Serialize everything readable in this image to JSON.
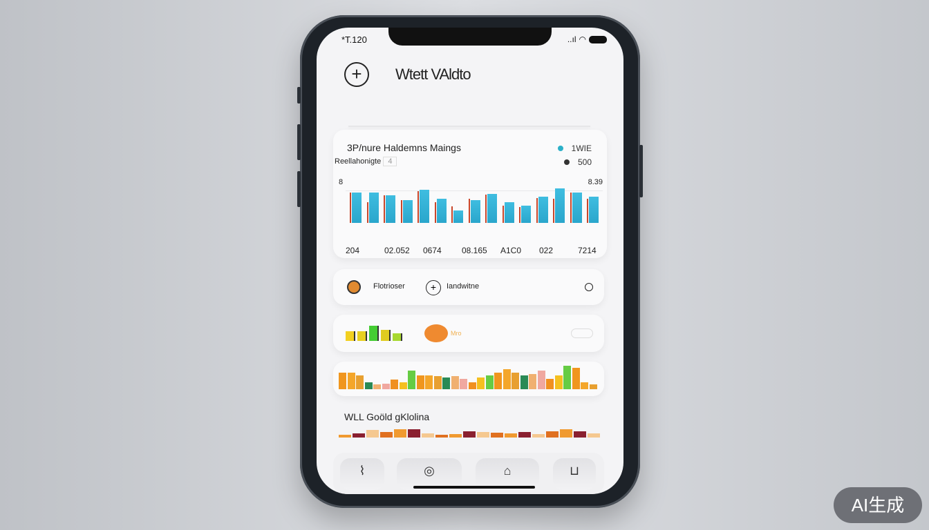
{
  "status": {
    "time": "*T‌.120",
    "signal": "..ıl",
    "wifi": "wifi-icon",
    "battery": "battery-icon"
  },
  "header": {
    "title": "Wtett VAldto",
    "add_icon": "plus-circle-icon"
  },
  "chart_card": {
    "title": "3P/nure  Haldemns Maings",
    "subtitle": "Reellahonigte",
    "subtitle_icon": "4",
    "legend": [
      {
        "label": "1WIE",
        "color": "#2bb0c8"
      },
      {
        "label": "500",
        "color": "#333333"
      }
    ],
    "y_left": "8",
    "y_right": "8.39",
    "x_labels": [
      "204",
      "02.052",
      "0674",
      "08.165",
      "A1C0",
      "022",
      "7214"
    ],
    "bar_values": [
      88,
      88,
      80,
      67,
      96,
      71,
      37,
      67,
      84,
      61,
      50,
      77,
      100,
      88,
      77
    ],
    "line_values": [
      88,
      60,
      80,
      66,
      92,
      60,
      48,
      70,
      82,
      50,
      46,
      72,
      70,
      88,
      70
    ],
    "colors": {
      "bar": "#3fbde0",
      "line": "#c8452a"
    }
  },
  "row_card": {
    "item1": "Flotrioser",
    "item2": "Iandwitne"
  },
  "mini_card": {
    "label": "Mro",
    "bars": [
      60,
      60,
      90,
      65,
      45
    ],
    "colors": [
      "#f2d020",
      "#e8d020",
      "#44cc33",
      "#e0cc20",
      "#a8d830"
    ]
  },
  "strip_bars": [
    70,
    70,
    60,
    30,
    20,
    25,
    40,
    30,
    80,
    60,
    60,
    55,
    50,
    55,
    45,
    30,
    50,
    60,
    70,
    85,
    70,
    60,
    65,
    80,
    45,
    60,
    100,
    90,
    30,
    20
  ],
  "section": {
    "title": "WLL Goöld gKlolina"
  },
  "bottom_strip": [
    20,
    30,
    55,
    40,
    60,
    60,
    30,
    20,
    25,
    45,
    40,
    35,
    30,
    40,
    25,
    45,
    60,
    45,
    30
  ],
  "nav": [
    "route-icon",
    "eye-icon",
    "box-icon",
    "cup-icon"
  ],
  "watermark": "AI生成"
}
